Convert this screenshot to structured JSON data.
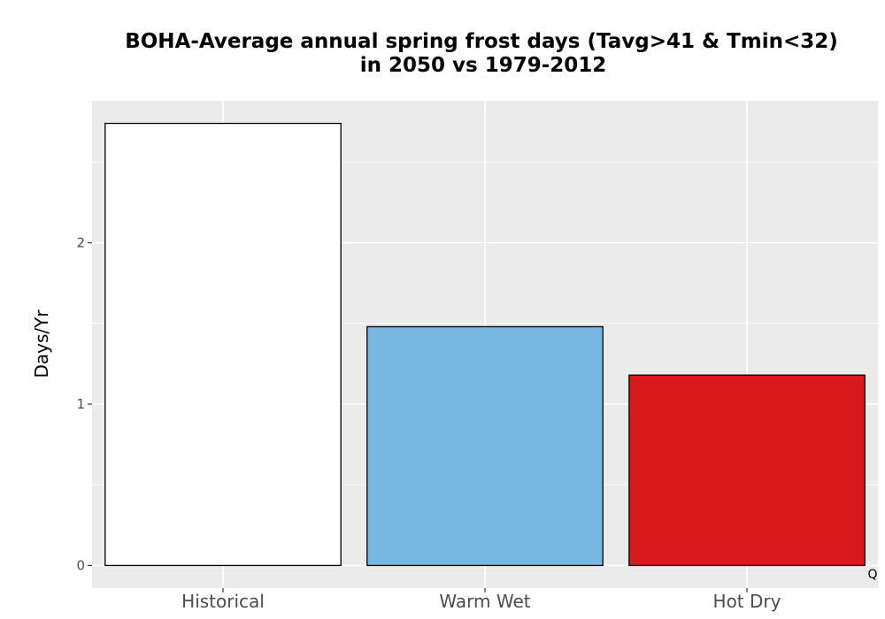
{
  "chart_data": {
    "type": "bar",
    "title_lines": [
      "BOHA-Average annual spring frost days (Tavg>41 & Tmin<32)",
      "in 2050 vs 1979-2012"
    ],
    "xlabel": "",
    "ylabel": "Days/Yr",
    "categories": [
      "Historical",
      "Warm Wet",
      "Hot Dry"
    ],
    "values": [
      2.74,
      1.48,
      1.18
    ],
    "colors": [
      "#ffffff",
      "#78b7e1",
      "#d7191c"
    ],
    "ylim": [
      -0.14,
      2.88
    ],
    "yticks": [
      0,
      1,
      2
    ],
    "ytick_labels": [
      "0",
      "1",
      "2"
    ],
    "grid": true,
    "legend": "none",
    "corner_note": "Q"
  }
}
